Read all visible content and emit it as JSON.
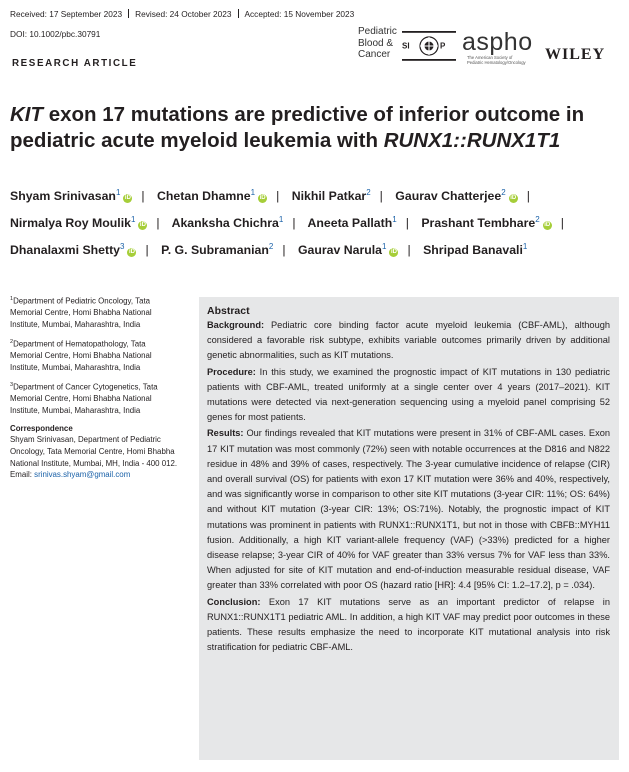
{
  "header": {
    "received": "Received: 17 September 2023",
    "revised": "Revised: 24 October 2023",
    "accepted": "Accepted: 15 November 2023",
    "doi": "DOI: 10.1002/pbc.30791",
    "article_type": "RESEARCH ARTICLE"
  },
  "logos": {
    "journal": [
      "Pediatric",
      "Blood &",
      "Cancer"
    ],
    "siop": "SIOP",
    "aspho": "aspho",
    "aspho_sub": [
      "The American Society of",
      "Pediatric Hematology/Oncology"
    ],
    "publisher": "WILEY"
  },
  "title": {
    "part1": "KIT",
    "part2": " exon 17 mutations are predictive of inferior outcome in pediatric acute myeloid leukemia with ",
    "part3": "RUNX1::RUNX1T1"
  },
  "authors": [
    {
      "name": "Shyam Srinivasan",
      "aff": "1",
      "orcid": true
    },
    {
      "name": "Chetan Dhamne",
      "aff": "1",
      "orcid": true
    },
    {
      "name": "Nikhil Patkar",
      "aff": "2",
      "orcid": false
    },
    {
      "name": "Gaurav Chatterjee",
      "aff": "2",
      "orcid": true
    },
    {
      "name": "Nirmalya Roy Moulik",
      "aff": "1",
      "orcid": true
    },
    {
      "name": "Akanksha Chichra",
      "aff": "1",
      "orcid": false
    },
    {
      "name": "Aneeta Pallath",
      "aff": "1",
      "orcid": false
    },
    {
      "name": "Prashant Tembhare",
      "aff": "2",
      "orcid": true
    },
    {
      "name": "Dhanalaxmi Shetty",
      "aff": "3",
      "orcid": true
    },
    {
      "name": "P. G. Subramanian",
      "aff": "2",
      "orcid": false
    },
    {
      "name": "Gaurav Narula",
      "aff": "1",
      "orcid": true
    },
    {
      "name": "Shripad Banavali",
      "aff": "1",
      "orcid": false
    }
  ],
  "affiliations": [
    {
      "num": "1",
      "text": "Department of Pediatric Oncology, Tata Memorial Centre, Homi Bhabha National Institute, Mumbai, Maharashtra, India"
    },
    {
      "num": "2",
      "text": "Department of Hematopathology, Tata Memorial Centre, Homi Bhabha National Institute, Mumbai, Maharashtra, India"
    },
    {
      "num": "3",
      "text": "Department of Cancer Cytogenetics, Tata Memorial Centre, Homi Bhabha National Institute, Mumbai, Maharashtra, India"
    }
  ],
  "correspondence": {
    "heading": "Correspondence",
    "text": "Shyam Srinivasan, Department of Pediatric Oncology, Tata Memorial Centre, Homi Bhabha National Institute, Mumbai, MH, India - 400 012.",
    "email_label": "Email: ",
    "email": "srinivas.shyam@gmail.com"
  },
  "abstract": {
    "heading": "Abstract",
    "background_label": "Background:",
    "background": " Pediatric core binding factor acute myeloid leukemia (CBF-AML), although considered a favorable risk subtype, exhibits variable outcomes primarily driven by additional genetic abnormalities, such as KIT mutations.",
    "procedure_label": "Procedure:",
    "procedure": " In this study, we examined the prognostic impact of KIT mutations in 130 pediatric patients with CBF-AML, treated uniformly at a single center over 4 years (2017–2021). KIT mutations were detected via next-generation sequencing using a myeloid panel comprising 52 genes for most patients.",
    "results_label": "Results:",
    "results": " Our findings revealed that KIT mutations were present in 31% of CBF-AML cases. Exon 17 KIT mutation was most commonly (72%) seen with notable occurrences at the D816 and N822 residue in 48% and 39% of cases, respectively. The 3-year cumulative incidence of relapse (CIR) and overall survival (OS) for patients with exon 17 KIT mutation were 36% and 40%, respectively, and was significantly worse in comparison to other site KIT mutations (3-year CIR: 11%; OS: 64%) and without KIT mutation (3-year CIR: 13%; OS:71%). Notably, the prognostic impact of KIT mutations was prominent in patients with RUNX1::RUNX1T1, but not in those with CBFB::MYH11 fusion. Additionally, a high KIT variant-allele frequency (VAF) (>33%) predicted for a higher disease relapse; 3-year CIR of 40% for VAF greater than 33% versus 7% for VAF less than 33%. When adjusted for site of KIT mutation and end-of-induction measurable residual disease, VAF greater than 33% correlated with poor OS (hazard ratio [HR]: 4.4 [95% CI: 1.2–17.2], p = .034).",
    "conclusion_label": "Conclusion:",
    "conclusion": " Exon 17 KIT mutations serve as an important predictor of relapse in RUNX1::RUNX1T1 pediatric AML. In addition, a high KIT VAF may predict poor outcomes in these patients. These results emphasize the need to incorporate KIT mutational analysis into risk stratification for pediatric CBF-AML."
  },
  "colors": {
    "abstract_bg": "#e6e7e8",
    "link": "#1a61a8",
    "orcid": "#a6ce39"
  }
}
